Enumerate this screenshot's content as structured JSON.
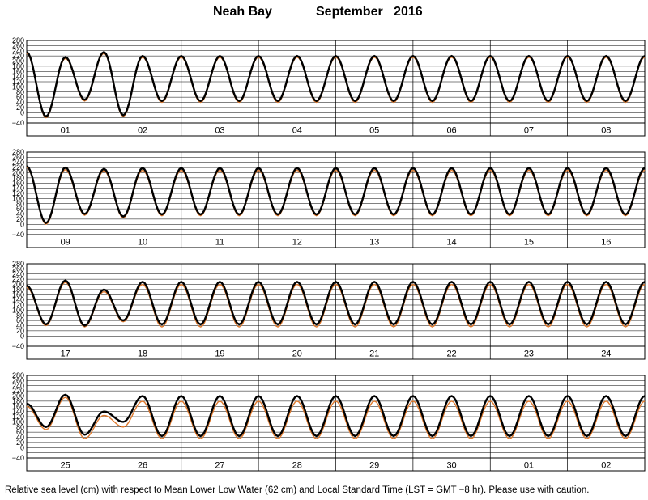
{
  "header": {
    "station": "Neah Bay",
    "month": "September",
    "year": "2016"
  },
  "footer": {
    "note": "Relative sea level (cm) with respect to Mean Lower Low Water (62 cm) and Local Standard Time (LST = GMT −8 hr). Please use with caution."
  },
  "colors": {
    "observed": "#000000",
    "predicted": "#e07a2e",
    "grid": "#000000"
  },
  "chart_data": {
    "type": "line",
    "units": "cm",
    "ylim": [
      -40,
      280
    ],
    "yticks": [
      "280",
      "260",
      "240",
      "220",
      "200",
      "180",
      "160",
      "140",
      "120",
      "100",
      "80",
      "60",
      "40",
      "20",
      "0",
      "−40"
    ],
    "panels": [
      {
        "days": [
          "01",
          "02",
          "03",
          "04",
          "05",
          "06",
          "07",
          "08"
        ],
        "start_day": 1
      },
      {
        "days": [
          "09",
          "10",
          "11",
          "12",
          "13",
          "14",
          "15",
          "16"
        ],
        "start_day": 9
      },
      {
        "days": [
          "17",
          "18",
          "19",
          "20",
          "21",
          "22",
          "23",
          "24"
        ],
        "start_day": 17
      },
      {
        "days": [
          "25",
          "26",
          "27",
          "28",
          "29",
          "30",
          "01",
          "02"
        ],
        "start_day": 25
      }
    ],
    "series": [
      {
        "key": "observed",
        "daily_extrema": [
          [
            235,
            -15,
            215,
            50,
            235,
            -10,
            220,
            45
          ],
          [
            225,
            5,
            220,
            40,
            215,
            30,
            218,
            38
          ],
          [
            195,
            45,
            215,
            40,
            180,
            60,
            210,
            45
          ],
          [
            170,
            80,
            205,
            50,
            140,
            100,
            200,
            45
          ],
          [
            150,
            120,
            195,
            45,
            150,
            130,
            195,
            35
          ],
          [
            155,
            135,
            200,
            30,
            170,
            130,
            210,
            10
          ],
          [
            180,
            100,
            222,
            -5,
            190,
            70,
            235,
            -15
          ],
          [
            210,
            50,
            245,
            -15,
            225,
            35,
            245,
            -20
          ],
          [
            240,
            10,
            240,
            -5,
            250,
            15,
            230,
            -15
          ],
          [
            250,
            25,
            255,
            -10,
            215,
            45,
            255,
            -20
          ],
          [
            195,
            70,
            245,
            -10,
            180,
            90,
            235,
            -5
          ],
          [
            170,
            110,
            225,
            10,
            175,
            120,
            210,
            40
          ],
          [
            185,
            110,
            215,
            60,
            195,
            90,
            220,
            40
          ],
          [
            200,
            80,
            220,
            30,
            205,
            60,
            225,
            30
          ],
          [
            220,
            40,
            225,
            30,
            220,
            30,
            230,
            30
          ],
          [
            220,
            30,
            235,
            25,
            215,
            50,
            235,
            20
          ]
        ]
      },
      {
        "key": "predicted",
        "daily_extrema": [
          [
            230,
            -20,
            210,
            45,
            230,
            -15,
            215,
            40
          ],
          [
            220,
            0,
            212,
            35,
            208,
            25,
            210,
            33
          ],
          [
            188,
            40,
            208,
            35,
            172,
            55,
            200,
            35
          ],
          [
            160,
            70,
            195,
            35,
            125,
            80,
            180,
            35
          ],
          [
            130,
            95,
            175,
            30,
            130,
            105,
            175,
            20
          ],
          [
            140,
            110,
            185,
            15,
            155,
            110,
            195,
            0
          ],
          [
            170,
            90,
            210,
            -10,
            180,
            60,
            225,
            -20
          ],
          [
            205,
            40,
            238,
            -20,
            222,
            30,
            240,
            -25
          ],
          [
            235,
            5,
            235,
            -10,
            245,
            10,
            225,
            -20
          ],
          [
            245,
            20,
            250,
            -15,
            210,
            40,
            250,
            -25
          ],
          [
            188,
            60,
            240,
            -15,
            172,
            80,
            228,
            -10
          ],
          [
            160,
            100,
            218,
            5,
            165,
            110,
            200,
            35
          ],
          [
            175,
            100,
            205,
            50,
            185,
            80,
            212,
            30
          ],
          [
            190,
            70,
            212,
            22,
            195,
            50,
            218,
            22
          ],
          [
            212,
            32,
            218,
            22,
            212,
            22,
            224,
            24
          ],
          [
            214,
            24,
            230,
            20,
            210,
            45,
            230,
            15
          ]
        ]
      }
    ]
  }
}
